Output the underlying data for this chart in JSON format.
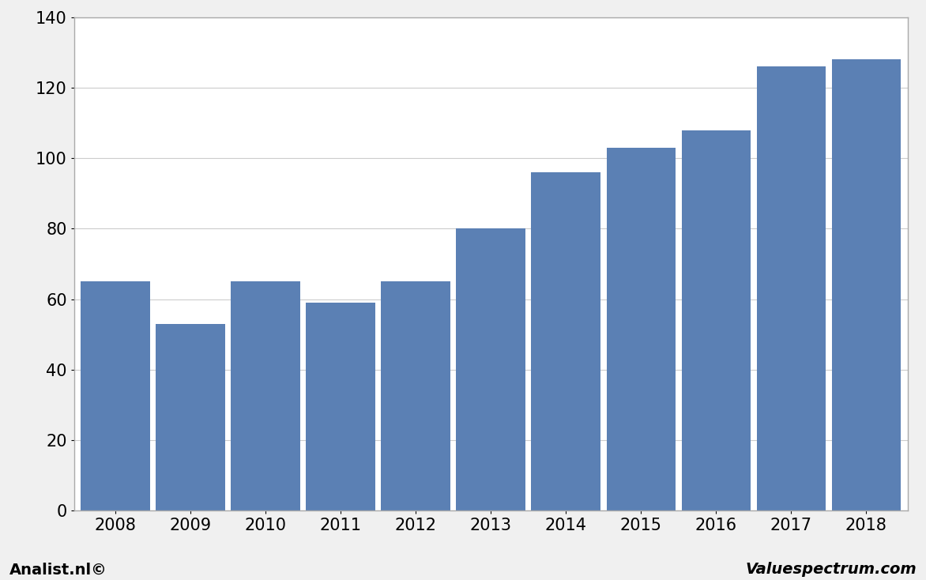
{
  "categories": [
    "2008",
    "2009",
    "2010",
    "2011",
    "2012",
    "2013",
    "2014",
    "2015",
    "2016",
    "2017",
    "2018"
  ],
  "values": [
    65,
    53,
    65,
    59,
    65,
    80,
    96,
    103,
    108,
    126,
    128
  ],
  "bar_color": "#5b80b4",
  "background_color": "#f0f0f0",
  "plot_bg_color": "#ffffff",
  "ylim": [
    0,
    140
  ],
  "yticks": [
    0,
    20,
    40,
    60,
    80,
    100,
    120,
    140
  ],
  "grid_color": "#cccccc",
  "border_color": "#aaaaaa",
  "footer_left": "Analist.nl©",
  "footer_right": "Valuespectrum.com",
  "tick_fontsize": 15,
  "footer_fontsize": 14
}
